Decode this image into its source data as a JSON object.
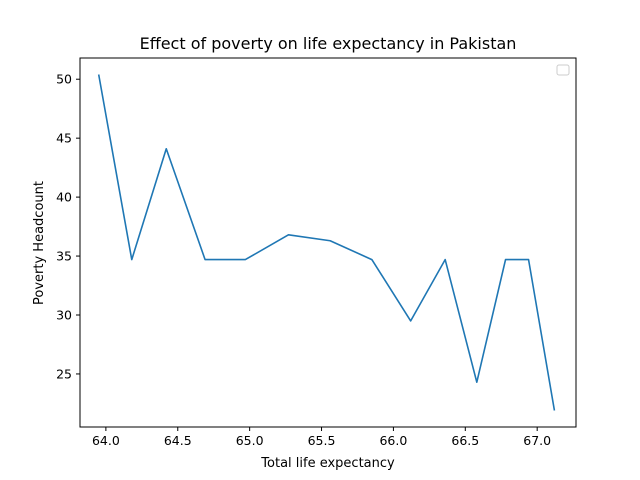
{
  "chart_data": {
    "type": "line",
    "title": "Effect of poverty on life expectancy in Pakistan",
    "xlabel": "Total life expectancy",
    "ylabel": "Poverty Headcount",
    "xlim": [
      63.82,
      67.27
    ],
    "ylim": [
      20.5,
      51.8
    ],
    "xticks": [
      64.0,
      64.5,
      65.0,
      65.5,
      66.0,
      66.5,
      67.0
    ],
    "xtick_labels": [
      "64.0",
      "64.5",
      "65.0",
      "65.5",
      "66.0",
      "66.5",
      "67.0"
    ],
    "yticks": [
      25,
      30,
      35,
      40,
      45,
      50
    ],
    "ytick_labels": [
      "25",
      "30",
      "35",
      "40",
      "45",
      "50"
    ],
    "grid": false,
    "legend": {
      "position": "top-right",
      "entries": []
    },
    "series": [
      {
        "name": "",
        "color": "#1f77b4",
        "x": [
          63.95,
          64.18,
          64.42,
          64.69,
          64.97,
          65.27,
          65.56,
          65.85,
          66.12,
          66.36,
          66.58,
          66.78,
          66.94,
          67.12
        ],
        "y": [
          50.4,
          34.7,
          44.1,
          34.7,
          34.7,
          36.8,
          36.3,
          34.7,
          29.5,
          34.7,
          24.3,
          34.7,
          34.7,
          21.9
        ]
      }
    ]
  }
}
